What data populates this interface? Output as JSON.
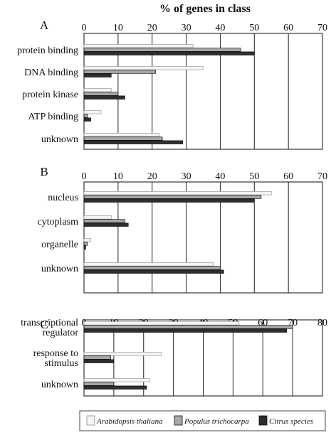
{
  "title": "% of genes in class",
  "legend": {
    "placement": "bottom",
    "entries": [
      {
        "name": "Arabidopsis thaliana",
        "color": "#f4f4f4"
      },
      {
        "name": "Populus trichocarpa",
        "color": "#a8a8a8"
      },
      {
        "name": "Citrus species",
        "color": "#2e2e2e"
      }
    ]
  },
  "chart_data": [
    {
      "type": "bar",
      "orientation": "horizontal",
      "panel": "A",
      "xlim": [
        0,
        70
      ],
      "ticks": [
        "0",
        "10",
        "20",
        "30",
        "40",
        "50",
        "60",
        "70"
      ],
      "categories": [
        "protein binding",
        "DNA binding",
        "protein kinase",
        "ATP binding",
        "unknown"
      ],
      "series": [
        {
          "name": "Arabidopsis thaliana",
          "values": [
            32,
            35,
            8,
            5,
            22
          ]
        },
        {
          "name": "Populus trichocarpa",
          "values": [
            46,
            21,
            10,
            1,
            23
          ]
        },
        {
          "name": "Citrus species",
          "values": [
            50,
            8,
            12,
            2,
            29
          ]
        }
      ],
      "grid": true
    },
    {
      "type": "bar",
      "orientation": "horizontal",
      "panel": "B",
      "xlim": [
        0,
        70
      ],
      "ticks": [
        "0",
        "10",
        "20",
        "30",
        "40",
        "50",
        "60",
        "70"
      ],
      "categories": [
        "nucleus",
        "cytoplasm",
        "organelle",
        "unknown"
      ],
      "series": [
        {
          "name": "Arabidopsis thaliana",
          "values": [
            55,
            8,
            2,
            38
          ]
        },
        {
          "name": "Populus trichocarpa",
          "values": [
            52,
            12,
            1,
            40
          ]
        },
        {
          "name": "Citrus species",
          "values": [
            50,
            13,
            0.5,
            41
          ]
        }
      ],
      "grid": true
    },
    {
      "type": "bar",
      "orientation": "horizontal",
      "panel": "C",
      "xlim": [
        0,
        80
      ],
      "ticks": [
        "0",
        "10",
        "20",
        "30",
        "40",
        "50",
        "60",
        "70",
        "80"
      ],
      "categories": [
        "transcriptional regulator",
        "response to stimulus",
        "unknown"
      ],
      "category_lines": [
        [
          "transcriptional",
          "regulator"
        ],
        [
          "response to",
          "stimulus"
        ],
        [
          "unknown"
        ]
      ],
      "series": [
        {
          "name": "Arabidopsis thaliana",
          "values": [
            52,
            26,
            22
          ]
        },
        {
          "name": "Populus trichocarpa",
          "values": [
            70,
            9,
            10
          ]
        },
        {
          "name": "Citrus species",
          "values": [
            68,
            10,
            21
          ]
        }
      ],
      "grid": true
    }
  ]
}
